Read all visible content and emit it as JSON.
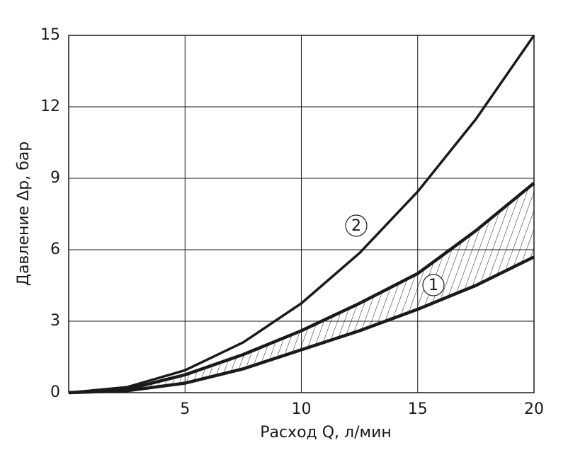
{
  "chart_data": {
    "type": "line",
    "x_label": "Расход Q, л/мин",
    "y_label": "Давление Δр, бар",
    "x": [
      0,
      2.5,
      5,
      7.5,
      10,
      12.5,
      15,
      17.5,
      20
    ],
    "series": [
      {
        "name": "2",
        "color": "#1a1a1a",
        "values": [
          0,
          0.23,
          0.94,
          2.11,
          3.75,
          5.86,
          8.44,
          11.48,
          15
        ]
      },
      {
        "name": "1",
        "color": "#1a1a1a",
        "values": [
          0,
          0.14,
          0.75,
          1.6,
          2.6,
          3.75,
          5.0,
          6.8,
          8.8
        ]
      },
      {
        "name": "1",
        "color": "#1a1a1a",
        "values": [
          0,
          0.08,
          0.4,
          1.0,
          1.8,
          2.6,
          3.5,
          4.5,
          5.7
        ]
      }
    ],
    "xlim": [
      0,
      20
    ],
    "xticks": [
      5,
      10,
      15,
      20
    ],
    "ylim": [
      0,
      15
    ],
    "yticks": [
      0,
      3,
      6,
      9,
      12,
      15
    ],
    "grid": true
  }
}
